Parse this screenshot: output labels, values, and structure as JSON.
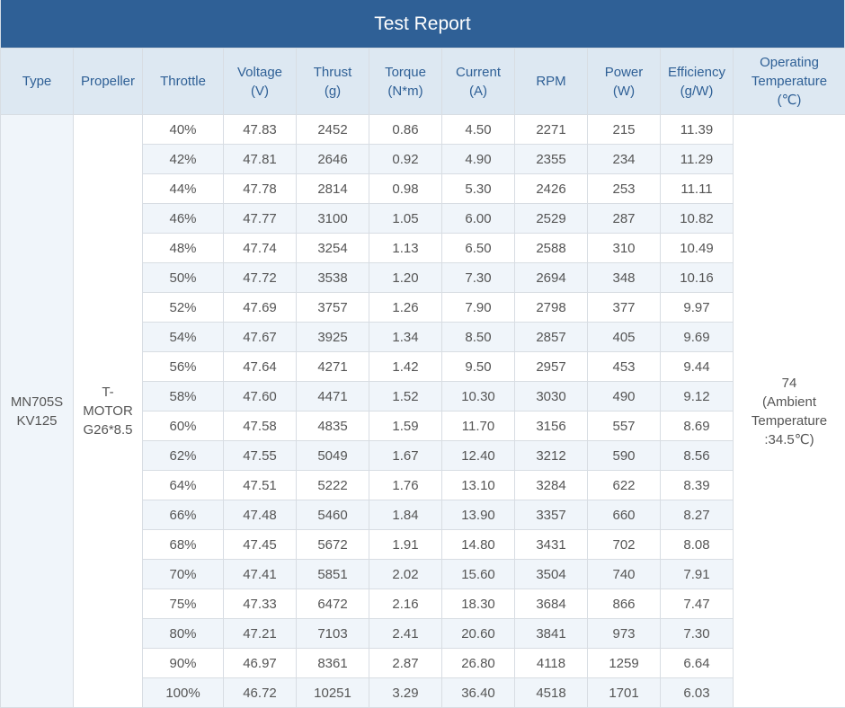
{
  "title": "Test Report",
  "headers": {
    "type": "Type",
    "propeller": "Propeller",
    "throttle": "Throttle",
    "voltage": "Voltage",
    "voltage_unit": "(V)",
    "thrust": "Thrust",
    "thrust_unit": "(g)",
    "torque": "Torque",
    "torque_unit": "(N*m)",
    "current": "Current",
    "current_unit": "(A)",
    "rpm": "RPM",
    "power": "Power",
    "power_unit": "(W)",
    "efficiency": "Efficiency",
    "efficiency_unit": "(g/W)",
    "temp_line1": "Operating",
    "temp_line2": "Temperature",
    "temp_unit": "(℃)"
  },
  "type": {
    "line1": "MN705S",
    "line2": "KV125"
  },
  "propeller": {
    "line1": "T-",
    "line2": "MOTOR",
    "line3": "G26*8.5"
  },
  "operating_temp": {
    "line1": "74",
    "line2": "(Ambient",
    "line3": "Temperature",
    "line4": ":34.5℃)"
  },
  "rows": [
    [
      "40%",
      "47.83",
      "2452",
      "0.86",
      "4.50",
      "2271",
      "215",
      "11.39"
    ],
    [
      "42%",
      "47.81",
      "2646",
      "0.92",
      "4.90",
      "2355",
      "234",
      "11.29"
    ],
    [
      "44%",
      "47.78",
      "2814",
      "0.98",
      "5.30",
      "2426",
      "253",
      "11.11"
    ],
    [
      "46%",
      "47.77",
      "3100",
      "1.05",
      "6.00",
      "2529",
      "287",
      "10.82"
    ],
    [
      "48%",
      "47.74",
      "3254",
      "1.13",
      "6.50",
      "2588",
      "310",
      "10.49"
    ],
    [
      "50%",
      "47.72",
      "3538",
      "1.20",
      "7.30",
      "2694",
      "348",
      "10.16"
    ],
    [
      "52%",
      "47.69",
      "3757",
      "1.26",
      "7.90",
      "2798",
      "377",
      "9.97"
    ],
    [
      "54%",
      "47.67",
      "3925",
      "1.34",
      "8.50",
      "2857",
      "405",
      "9.69"
    ],
    [
      "56%",
      "47.64",
      "4271",
      "1.42",
      "9.50",
      "2957",
      "453",
      "9.44"
    ],
    [
      "58%",
      "47.60",
      "4471",
      "1.52",
      "10.30",
      "3030",
      "490",
      "9.12"
    ],
    [
      "60%",
      "47.58",
      "4835",
      "1.59",
      "11.70",
      "3156",
      "557",
      "8.69"
    ],
    [
      "62%",
      "47.55",
      "5049",
      "1.67",
      "12.40",
      "3212",
      "590",
      "8.56"
    ],
    [
      "64%",
      "47.51",
      "5222",
      "1.76",
      "13.10",
      "3284",
      "622",
      "8.39"
    ],
    [
      "66%",
      "47.48",
      "5460",
      "1.84",
      "13.90",
      "3357",
      "660",
      "8.27"
    ],
    [
      "68%",
      "47.45",
      "5672",
      "1.91",
      "14.80",
      "3431",
      "702",
      "8.08"
    ],
    [
      "70%",
      "47.41",
      "5851",
      "2.02",
      "15.60",
      "3504",
      "740",
      "7.91"
    ],
    [
      "75%",
      "47.33",
      "6472",
      "2.16",
      "18.30",
      "3684",
      "866",
      "7.47"
    ],
    [
      "80%",
      "47.21",
      "7103",
      "2.41",
      "20.60",
      "3841",
      "973",
      "7.30"
    ],
    [
      "90%",
      "46.97",
      "8361",
      "2.87",
      "26.80",
      "4118",
      "1259",
      "6.64"
    ],
    [
      "100%",
      "46.72",
      "10251",
      "3.29",
      "36.40",
      "4518",
      "1701",
      "6.03"
    ]
  ]
}
